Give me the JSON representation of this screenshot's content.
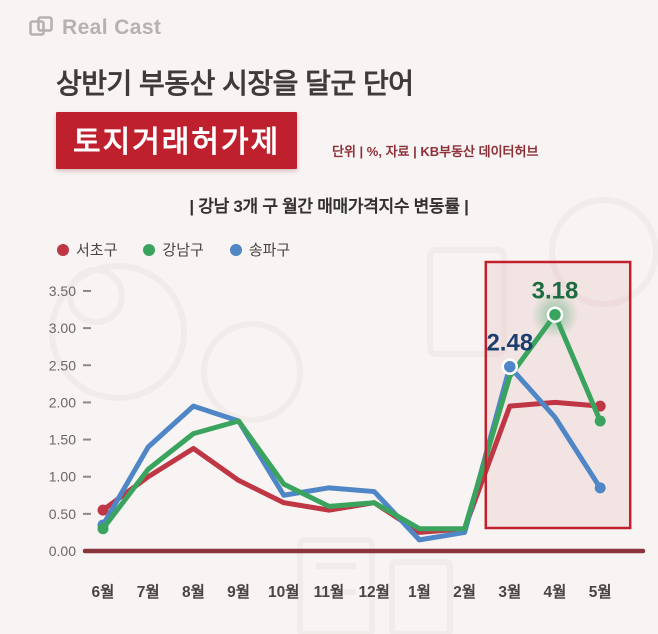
{
  "logo": {
    "brand": "Real Cast"
  },
  "header": {
    "title": "상반기 부동산 시장을 달군 단어",
    "keyword": "토지거래허가제",
    "source_note": "단위 | %, 자료 | KB부동산 데이터허브"
  },
  "chart_data": {
    "type": "line",
    "title": "| 강남 3개 구 월간 매매가격지수 변동률 |",
    "categories": [
      "6월",
      "7월",
      "8월",
      "9월",
      "10월",
      "11월",
      "12월",
      "1월",
      "2월",
      "3월",
      "4월",
      "5월"
    ],
    "series": [
      {
        "name": "서초구",
        "color": "#bf3644",
        "values": [
          0.55,
          1.0,
          1.38,
          0.95,
          0.65,
          0.55,
          0.65,
          0.25,
          0.3,
          1.95,
          2.0,
          1.95
        ]
      },
      {
        "name": "강남구",
        "color": "#3aa45f",
        "values": [
          0.3,
          1.1,
          1.58,
          1.75,
          0.9,
          0.6,
          0.65,
          0.3,
          0.3,
          2.35,
          3.18,
          1.75
        ]
      },
      {
        "name": "송파구",
        "color": "#4f86c6",
        "values": [
          0.35,
          1.4,
          1.95,
          1.75,
          0.75,
          0.85,
          0.8,
          0.15,
          0.25,
          2.48,
          1.8,
          0.85
        ]
      }
    ],
    "ylim": [
      0,
      3.5
    ],
    "ytick_step": 0.5,
    "grid": false,
    "legend_position": "top-left",
    "axis_color": "#8a343c",
    "tick_label_color": "#6d6666",
    "annotations": [
      {
        "series": "송파구",
        "index": 9,
        "text": "2.48",
        "color": "#1b3f6e",
        "glow": false
      },
      {
        "series": "강남구",
        "index": 10,
        "text": "3.18",
        "color": "#1d6b40",
        "glow": true
      }
    ],
    "highlight_region": {
      "from_index": 9,
      "to_index": 11,
      "from_category": "3월",
      "to_category": "5월",
      "border_color": "#c2202c",
      "fill_color": "rgba(193,32,44,0.07)"
    }
  }
}
